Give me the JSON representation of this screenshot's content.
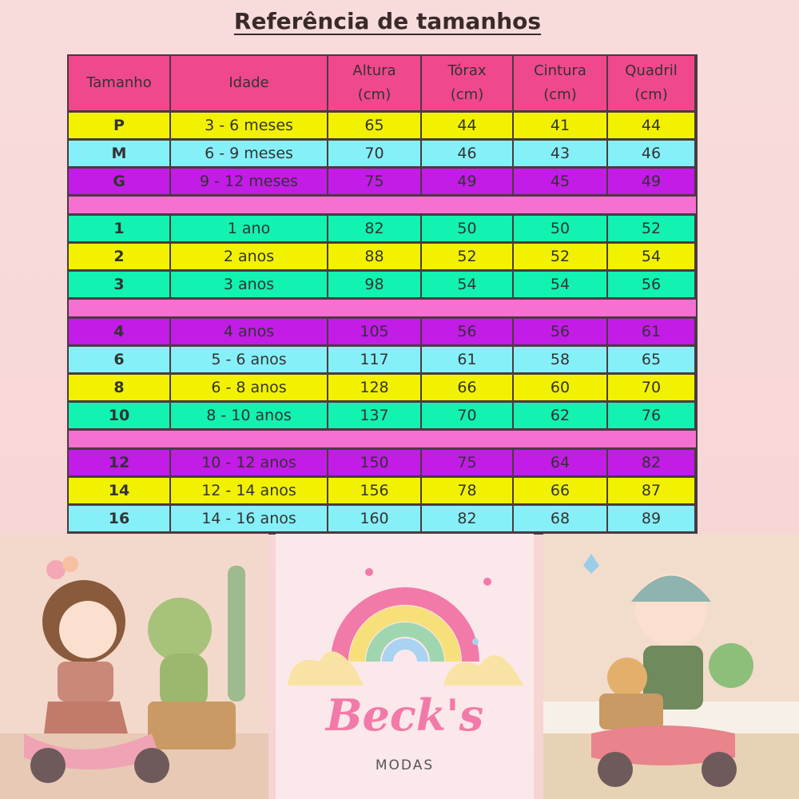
{
  "title": "Referência de tamanhos",
  "table": {
    "headers": [
      "Tamanho",
      "Idade",
      "Altura (cm)",
      "Tórax (cm)",
      "Cintura (cm)",
      "Quadril (cm)"
    ],
    "groups": [
      {
        "rows": [
          [
            "P",
            "3 - 6 meses",
            65,
            44,
            41,
            44
          ],
          [
            "M",
            "6 - 9 meses",
            70,
            46,
            43,
            46
          ],
          [
            "G",
            "9 - 12 meses",
            75,
            49,
            45,
            49
          ]
        ]
      },
      {
        "rows": [
          [
            "1",
            "1 ano",
            82,
            50,
            50,
            52
          ],
          [
            "2",
            "2 anos",
            88,
            52,
            52,
            54
          ],
          [
            "3",
            "3 anos",
            98,
            54,
            54,
            56
          ]
        ]
      },
      {
        "rows": [
          [
            "4",
            "4 anos",
            105,
            56,
            56,
            61
          ],
          [
            "6",
            "5 - 6 anos",
            117,
            61,
            58,
            65
          ],
          [
            "8",
            "6 - 8 anos",
            128,
            66,
            60,
            70
          ],
          [
            "10",
            "8 - 10 anos",
            137,
            70,
            62,
            76
          ]
        ]
      },
      {
        "rows": [
          [
            "12",
            "10 - 12 anos",
            150,
            75,
            64,
            82
          ],
          [
            "14",
            "12 - 14 anos",
            156,
            78,
            66,
            87
          ],
          [
            "16",
            "14 - 16 anos",
            160,
            82,
            68,
            89
          ]
        ]
      }
    ]
  },
  "logo": {
    "name": "Beck's",
    "subtitle": "MODAS"
  }
}
